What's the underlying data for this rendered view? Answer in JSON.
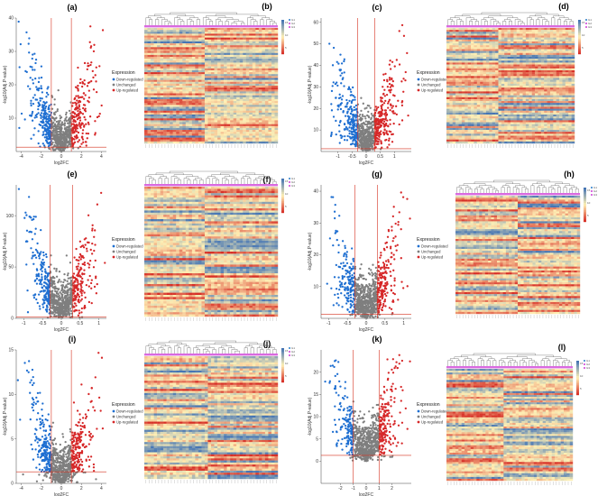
{
  "figure": {
    "description_labels": true
  },
  "colors": {
    "down": "#1f6fd1",
    "unchanged": "#7f7f7f",
    "up": "#d62728",
    "threshold": "#d6301f",
    "tree": "#555555",
    "group_bar": "#d96ae0",
    "heat_low": "#d73027",
    "heat_mid": "#ffffbf",
    "heat_high": "#4575b4"
  },
  "legend": {
    "title": "Expression",
    "items": [
      "Down-regulated",
      "Unchanged",
      "Up-regulated"
    ]
  },
  "heatmap_legend_groups": [
    "G1",
    "G2",
    "G3"
  ],
  "volcanoes": [
    {
      "label": "(a)",
      "ylabel": "-log10(Adj.P-value)",
      "xlabel": "log2FC",
      "xlim": [
        -4.5,
        4.5
      ],
      "ylim": [
        0,
        40
      ],
      "xticks": [
        -4,
        -2,
        0,
        2,
        4
      ],
      "yticks": [
        10,
        20,
        30,
        40
      ],
      "fc_threshold": 1,
      "p_threshold": 1.3
    },
    {
      "label": "(c)",
      "ylabel": "-log10(Adj.P-value)",
      "xlabel": "log2FC",
      "xlim": [
        -1.6,
        1.6
      ],
      "ylim": [
        0,
        62
      ],
      "xticks": [
        -1.0,
        -0.5,
        0.0,
        0.5,
        1.0
      ],
      "yticks": [
        10,
        20,
        30,
        40,
        50,
        60
      ],
      "fc_threshold": 0.3,
      "p_threshold": 1.3
    },
    {
      "label": "(e)",
      "ylabel": "-log10(Adj.P-value)",
      "xlabel": "log2FC",
      "xlim": [
        -1.2,
        1.2
      ],
      "ylim": [
        0,
        130
      ],
      "xticks": [
        -1.0,
        -0.5,
        0.0,
        0.5,
        1.0
      ],
      "yticks": [
        0,
        50,
        100
      ],
      "fc_threshold": 0.3,
      "p_threshold": 1.3
    },
    {
      "label": "(g)",
      "ylabel": "-log10(Adj.P-value)",
      "xlabel": "log2FC",
      "xlim": [
        -1.2,
        1.2
      ],
      "ylim": [
        0,
        42
      ],
      "xticks": [
        -1.0,
        -0.5,
        0.0,
        0.5,
        1.0
      ],
      "yticks": [
        10,
        20,
        30,
        40
      ],
      "fc_threshold": 0.3,
      "p_threshold": 1.3
    },
    {
      "label": "(i)",
      "ylabel": "-log10(Adj.P-value)",
      "xlabel": "log2FC",
      "xlim": [
        -4.5,
        4.5
      ],
      "ylim": [
        0,
        15
      ],
      "xticks": [
        -4,
        -2,
        0,
        2,
        4
      ],
      "yticks": [
        0,
        5,
        10,
        15
      ],
      "fc_threshold": 1,
      "p_threshold": 1.3
    },
    {
      "label": "(k)",
      "ylabel": "-log10(Adj.P-value)",
      "xlabel": "log2FC",
      "xlim": [
        -3.5,
        3.5
      ],
      "ylim": [
        -5,
        25
      ],
      "xticks": [
        -2,
        -1,
        0,
        1,
        2
      ],
      "yticks": [
        0,
        5,
        10,
        15,
        20
      ],
      "fc_threshold": 1,
      "p_threshold": 1.3
    }
  ],
  "heatmaps": [
    {
      "label": "(b)",
      "scale_ticks": [
        "15",
        "10",
        "5"
      ]
    },
    {
      "label": "(d)",
      "scale_ticks": [
        "15",
        "10",
        "5"
      ]
    },
    {
      "label": "(f)",
      "scale_ticks": [
        "15",
        "10",
        "5"
      ]
    },
    {
      "label": "(h)",
      "scale_ticks": [
        "15",
        "10",
        "5"
      ]
    },
    {
      "label": "(j)",
      "scale_ticks": [
        "15",
        "10",
        "5"
      ]
    },
    {
      "label": "(l)",
      "scale_ticks": [
        "15",
        "10",
        "5"
      ]
    }
  ]
}
